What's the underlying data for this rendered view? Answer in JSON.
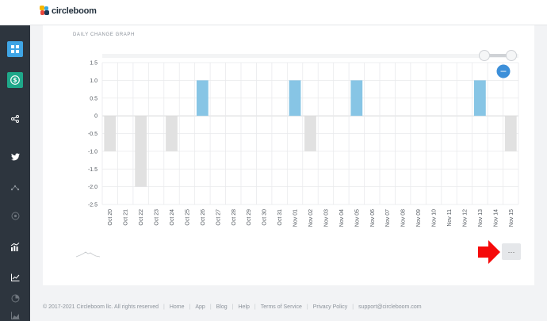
{
  "brand": {
    "name": "circleboom"
  },
  "sidebar": {
    "items": [
      {
        "icon": "dashboard-icon",
        "active": true
      },
      {
        "icon": "dollar-icon",
        "active": true
      },
      {
        "icon": "share-icon",
        "active": false
      },
      {
        "icon": "twitter-icon",
        "active": false
      },
      {
        "icon": "network-icon",
        "active": false
      },
      {
        "icon": "target-icon",
        "active": false
      },
      {
        "icon": "analytics-icon",
        "active": false
      },
      {
        "icon": "trend-icon",
        "active": false
      },
      {
        "icon": "pie-icon",
        "active": false
      },
      {
        "icon": "area-icon",
        "active": false
      }
    ]
  },
  "card": {
    "title": "DAILY CHANGE GRAPH",
    "more_label": "···"
  },
  "chart_data": {
    "type": "bar",
    "title": "DAILY CHANGE GRAPH",
    "categories": [
      "Oct 20",
      "Oct 21",
      "Oct 22",
      "Oct 23",
      "Oct 24",
      "Oct 25",
      "Oct 26",
      "Oct 27",
      "Oct 28",
      "Oct 29",
      "Oct 30",
      "Oct 31",
      "Nov 01",
      "Nov 02",
      "Nov 03",
      "Nov 04",
      "Nov 05",
      "Nov 06",
      "Nov 07",
      "Nov 08",
      "Nov 09",
      "Nov 10",
      "Nov 11",
      "Nov 12",
      "Nov 13",
      "Nov 14",
      "Nov 15"
    ],
    "values": [
      -1,
      0,
      -2,
      0,
      -1,
      0,
      1,
      0,
      0,
      0,
      0,
      0,
      1,
      -1,
      0,
      0,
      1,
      0,
      0,
      0,
      0,
      0,
      0,
      0,
      1,
      0,
      -1
    ],
    "ylim": [
      -2.5,
      1.5
    ],
    "yticks": [
      "1.5",
      "1.0",
      "0.5",
      "0",
      "-0.5",
      "-1.0",
      "-1.5",
      "-2.0",
      "-2.5"
    ],
    "grid": true,
    "colors": {
      "positive": "#87c5e5",
      "negative": "#e1e1e1",
      "grid": "#e9eaec",
      "zero": "#c9cbce"
    },
    "zoom_button": "−"
  },
  "footer": {
    "copyright": "© 2017-2021 Circleboom llc. All rights reserved",
    "links": [
      "Home",
      "App",
      "Blog",
      "Help",
      "Terms of Service",
      "Privacy Policy"
    ],
    "email": "support@circleboom.com"
  }
}
